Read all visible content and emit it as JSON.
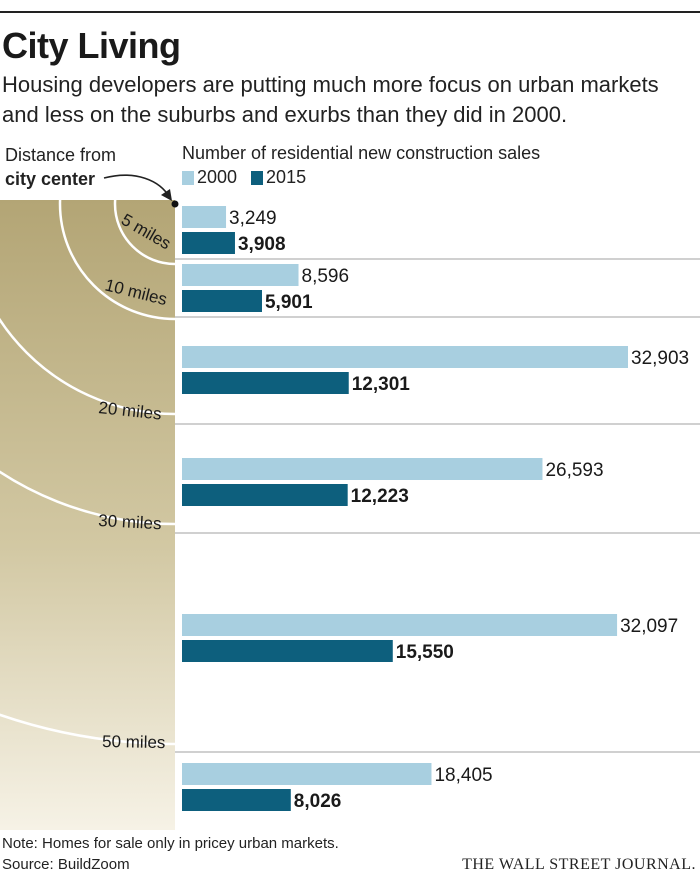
{
  "header": {
    "title": "City Living",
    "subtitle": "Housing developers are putting much more focus on urban markets and less on the suburbs and exurbs than they did in 2000."
  },
  "distance_label": {
    "line1": "Distance from",
    "line2": "city center"
  },
  "chart_data": {
    "type": "bar",
    "orientation": "horizontal",
    "ylabel": "Number of residential new construction sales",
    "categories": [
      "0-5 miles",
      "5-10 miles",
      "10-20 miles",
      "20-30 miles",
      "30-50 miles",
      "50+ miles"
    ],
    "series": [
      {
        "name": "2000",
        "color": "#a8cfe0",
        "values": [
          3249,
          8596,
          32903,
          26593,
          32097,
          18405
        ],
        "labels": [
          "3,249",
          "8,596",
          "32,903",
          "26,593",
          "32,097",
          "18,405"
        ]
      },
      {
        "name": "2015",
        "color": "#0d5f7d",
        "values": [
          3908,
          5901,
          12301,
          12223,
          15550,
          8026
        ],
        "labels": [
          "3,908",
          "5,901",
          "12,301",
          "12,223",
          "15,550",
          "8,026"
        ]
      }
    ],
    "distance_rings": [
      "5 miles",
      "10 miles",
      "20 miles",
      "30 miles",
      "50 miles"
    ]
  },
  "footer": {
    "note": "Note: Homes for sale only in pricey urban markets.",
    "source": "Source: BuildZoom",
    "brand": "THE WALL STREET JOURNAL."
  }
}
